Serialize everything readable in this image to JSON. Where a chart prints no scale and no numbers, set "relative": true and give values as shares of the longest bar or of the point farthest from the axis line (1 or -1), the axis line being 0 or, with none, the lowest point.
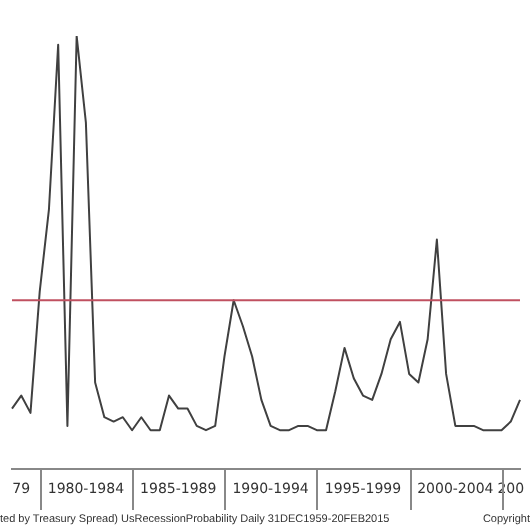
{
  "chart_data": {
    "type": "line",
    "relative": true,
    "color": "#404040",
    "grid": false,
    "legend": false,
    "marker": "none",
    "line_style": "solid",
    "categories": [
      null,
      "79",
      null,
      null,
      null,
      null,
      null,
      null,
      "1980-1984",
      null,
      null,
      null,
      null,
      null,
      null,
      null,
      null,
      null,
      "1985-1989",
      null,
      null,
      null,
      null,
      null,
      null,
      null,
      null,
      null,
      "1990-1994",
      null,
      null,
      null,
      null,
      null,
      null,
      null,
      null,
      null,
      "1995-1999",
      null,
      null,
      null,
      null,
      null,
      null,
      null,
      null,
      null,
      "2000-2004",
      null,
      null,
      null,
      null,
      null,
      "200",
      null
    ],
    "values": [
      0.14,
      0.17,
      0.13,
      0.41,
      0.6,
      0.98,
      0.1,
      1.0,
      0.8,
      0.2,
      0.12,
      0.11,
      0.12,
      0.09,
      0.12,
      0.09,
      0.09,
      0.17,
      0.14,
      0.14,
      0.1,
      0.09,
      0.1,
      0.26,
      0.39,
      0.33,
      0.26,
      0.16,
      0.1,
      0.09,
      0.09,
      0.1,
      0.1,
      0.09,
      0.09,
      0.18,
      0.28,
      0.21,
      0.17,
      0.16,
      0.22,
      0.3,
      0.34,
      0.22,
      0.2,
      0.3,
      0.53,
      0.22,
      0.1,
      0.1,
      0.1,
      0.09,
      0.09,
      0.09,
      0.11,
      0.16
    ],
    "ref_lines": [
      {
        "axis": "y",
        "value": 0.39,
        "color": "#c05060"
      }
    ],
    "annotations": [
      "ted by Treasury Spread) UsRecessionProbability Daily 31DEC1959-20FEB2015",
      "Copyright"
    ]
  }
}
